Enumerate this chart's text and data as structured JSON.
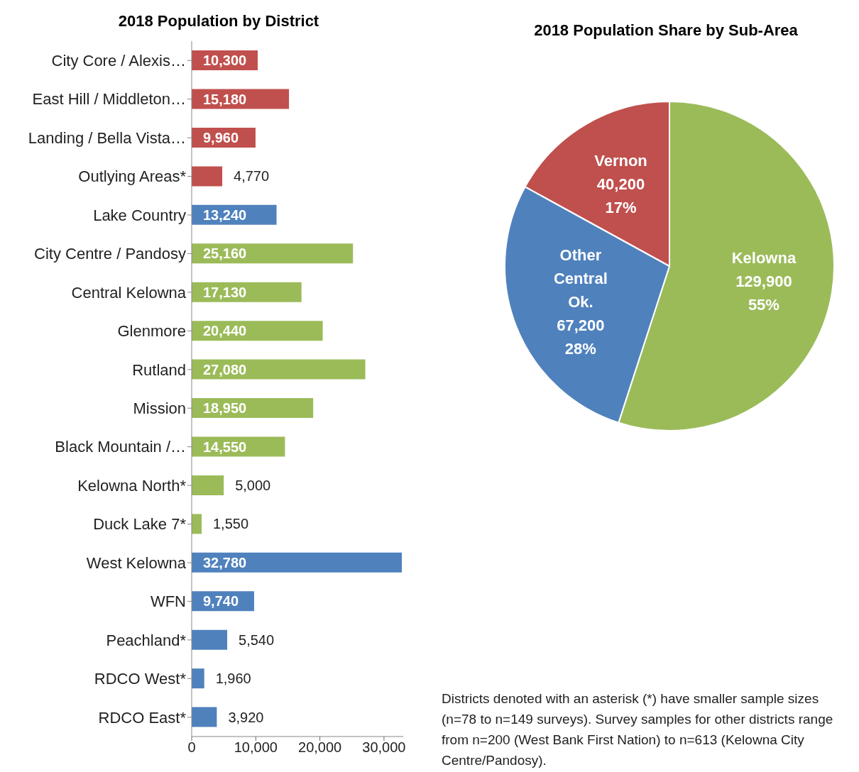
{
  "chart_data": [
    {
      "type": "bar",
      "orientation": "horizontal",
      "title": "2018 Population by District",
      "categories": [
        "City Core / Alexis…",
        "East Hill / Middleton…",
        "Landing / Bella Vista…",
        "Outlying Areas*",
        "Lake Country",
        "City Centre / Pandosy",
        "Central Kelowna",
        "Glenmore",
        "Rutland",
        "Mission",
        "Black Mountain /…",
        "Kelowna North*",
        "Duck Lake 7*",
        "West Kelowna",
        "WFN",
        "Peachland*",
        "RDCO West*",
        "RDCO East*"
      ],
      "values": [
        10300,
        15180,
        9960,
        4770,
        13240,
        25160,
        17130,
        20440,
        27080,
        18950,
        14550,
        5000,
        1550,
        32780,
        9740,
        5540,
        1960,
        3920
      ],
      "colors": [
        "#c0504d",
        "#c0504d",
        "#c0504d",
        "#c0504d",
        "#4f81bd",
        "#9bbb59",
        "#9bbb59",
        "#9bbb59",
        "#9bbb59",
        "#9bbb59",
        "#9bbb59",
        "#9bbb59",
        "#9bbb59",
        "#4f81bd",
        "#4f81bd",
        "#4f81bd",
        "#4f81bd",
        "#4f81bd"
      ],
      "value_labels": [
        "10,300",
        "15,180",
        "9,960",
        "4,770",
        "13,240",
        "25,160",
        "17,130",
        "20,440",
        "27,080",
        "18,950",
        "14,550",
        "5,000",
        "1,550",
        "32,780",
        "9,740",
        "5,540",
        "1,960",
        "3,920"
      ],
      "xlim": [
        0,
        33000
      ],
      "xticks": [
        0,
        {
          "value": 10000,
          "label": "10,000"
        },
        {
          "value": 20000,
          "label": "20,000"
        },
        {
          "value": 30000,
          "label": "30,000"
        }
      ]
    },
    {
      "type": "pie",
      "title": "2018 Population Share by Sub-Area",
      "categories": [
        "Kelowna",
        "Other Central Ok.",
        "Vernon"
      ],
      "values": [
        55,
        28,
        17
      ],
      "colors": [
        "#9bbb59",
        "#4f81bd",
        "#c0504d"
      ],
      "value_labels": [
        "129,900 55%",
        "67,200 28%",
        "40,200 17%"
      ],
      "annotations": [
        "Districts denoted with an asterisk (*) have smaller sample sizes (n=78 to n=149 surveys). Survey samples for other districts range from n=200 (West Bank First Nation) to n=613 (Kelowna City Centre/Pandosy)."
      ]
    }
  ]
}
